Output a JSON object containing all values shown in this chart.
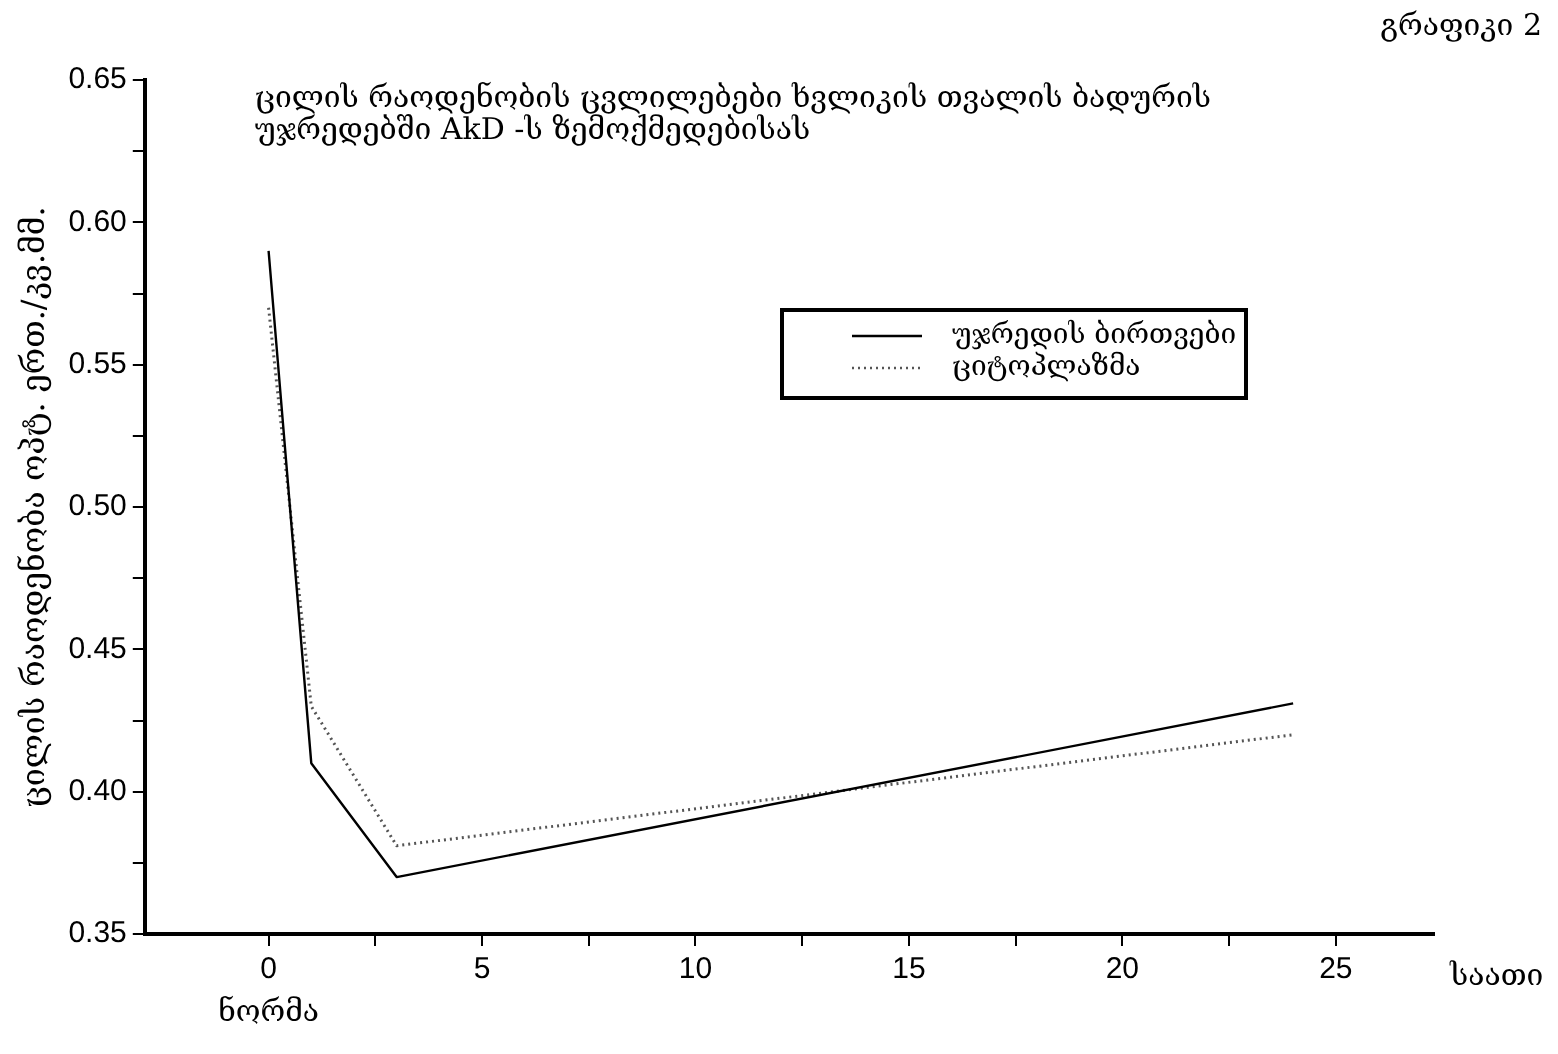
{
  "chart_data": {
    "type": "line",
    "title": "ცილის რაოდენობის ცვლილებები ხვლიკის თვალის ბადურის\nუჯრედებში AkD -ს ზემოქმედებისას",
    "ylabel": "ცილის რაოდენობა ოპტ. ერთ./კვ.მმ.",
    "xlabel": "საათი",
    "annotations": [
      "გრაფიკი 2",
      "ნორმა"
    ],
    "series": [
      {
        "name": "უჯრედის ბირთვები",
        "color": "#000000",
        "line_style": "solid",
        "x": [
          0,
          1,
          3,
          24
        ],
        "values": [
          0.59,
          0.41,
          0.37,
          0.431
        ]
      },
      {
        "name": "ციტოპლაზმა",
        "color": "#555555",
        "line_style": "dotted",
        "x": [
          0,
          1,
          3,
          24
        ],
        "values": [
          0.57,
          0.43,
          0.381,
          0.42
        ]
      }
    ],
    "xlim": [
      -2.9,
      27.3
    ],
    "xticks": [
      0,
      {
        "value": 2.5,
        "label": null
      },
      5,
      {
        "value": 7.5,
        "label": null
      },
      10,
      {
        "value": 12.5,
        "label": null
      },
      15,
      {
        "value": 17.5,
        "label": null
      },
      20,
      {
        "value": 22.5,
        "label": null
      },
      25
    ],
    "ylim": [
      0.35,
      0.65
    ],
    "yticks": [
      {
        "value": 0.35,
        "label": "0.35"
      },
      {
        "value": 0.375,
        "label": null
      },
      {
        "value": 0.4,
        "label": "0.40"
      },
      {
        "value": 0.425,
        "label": null
      },
      {
        "value": 0.45,
        "label": "0.45"
      },
      {
        "value": 0.475,
        "label": null
      },
      {
        "value": 0.5,
        "label": "0.50"
      },
      {
        "value": 0.525,
        "label": null
      },
      {
        "value": 0.55,
        "label": "0.55"
      },
      {
        "value": 0.575,
        "label": null
      },
      {
        "value": 0.6,
        "label": "0.60"
      },
      {
        "value": 0.625,
        "label": null
      },
      {
        "value": 0.65,
        "label": "0.65"
      }
    ],
    "grid": false,
    "legend": "top right",
    "marker": "none"
  }
}
